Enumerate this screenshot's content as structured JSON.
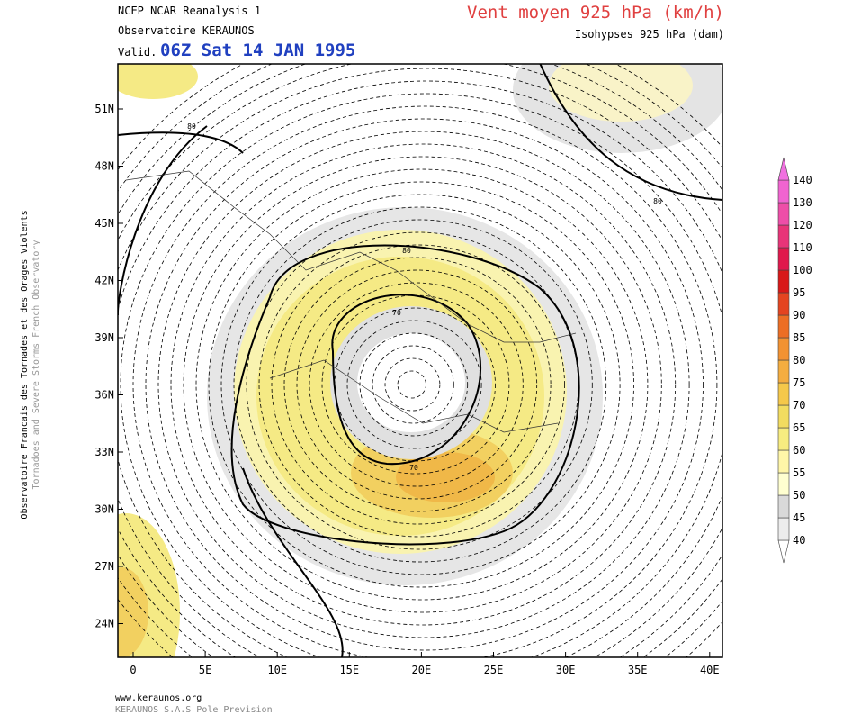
{
  "header": {
    "source": "NCEP NCAR Reanalysis 1",
    "observatory": "Observatoire KERAUNOS",
    "valid_prefix": "Valid.",
    "valid_time": "06Z Sat 14 JAN 1995",
    "title": "Vent moyen 925 hPa (km/h)",
    "subtitle": "Isohypses 925 hPa (dam)"
  },
  "sidebar": {
    "line1": "Observatoire Francais des Tornades et des Orages Violents",
    "line2": "Tornadoes and Severe Storms French Observatory"
  },
  "map": {
    "lat_labels": [
      "51N",
      "48N",
      "45N",
      "42N",
      "39N",
      "36N",
      "33N",
      "30N",
      "27N",
      "24N"
    ],
    "lon_labels": [
      "0",
      "5E",
      "10E",
      "15E",
      "20E",
      "25E",
      "30E",
      "35E",
      "40E"
    ],
    "contour_labels": [
      "80",
      "80",
      "80",
      "70",
      "70"
    ]
  },
  "colorbar": {
    "labels": [
      "40",
      "45",
      "50",
      "55",
      "60",
      "65",
      "70",
      "75",
      "80",
      "85",
      "90",
      "95",
      "100",
      "110",
      "120",
      "130",
      "140"
    ],
    "colors": [
      "#ececec",
      "#d9d9d9",
      "#ffffd0",
      "#fff6a8",
      "#f7ec80",
      "#f2dc60",
      "#f5c84a",
      "#f4ad40",
      "#f29232",
      "#ec6e24",
      "#e44420",
      "#d81818",
      "#e0184c",
      "#e83478",
      "#ee4ea8",
      "#f064d0"
    ]
  },
  "footer": {
    "url": "www.keraunos.org",
    "company": "KERAUNOS S.A.S Pole Prevision"
  }
}
